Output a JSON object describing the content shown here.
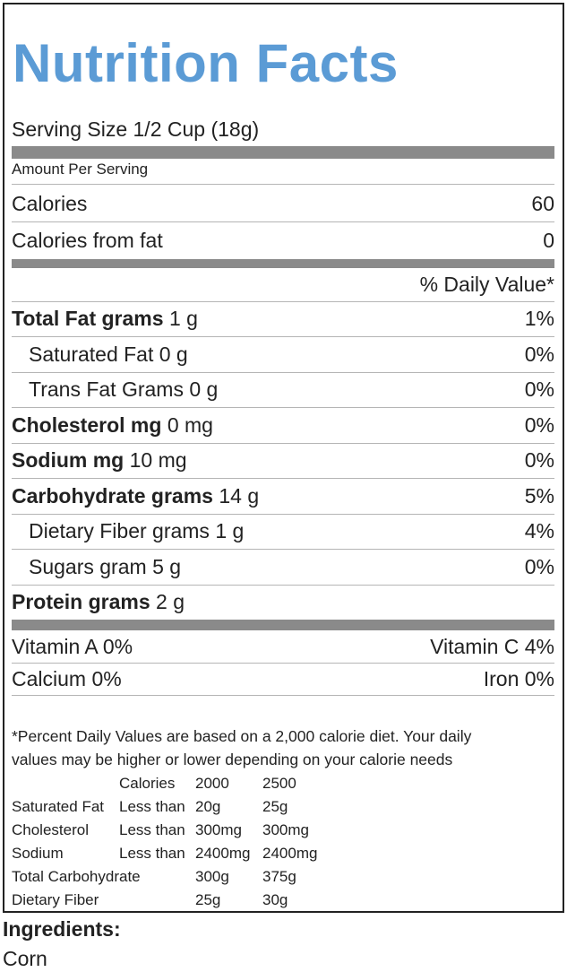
{
  "title": "Nutrition Facts",
  "serving_size": "Serving Size 1/2 Cup (18g)",
  "amount_per_serving": "Amount Per Serving",
  "calories": {
    "label": "Calories",
    "value": "60"
  },
  "calories_from_fat": {
    "label": "Calories from fat",
    "value": "0"
  },
  "daily_value_header": "% Daily Value*",
  "nutrients": [
    {
      "name": "Total Fat grams",
      "amount": "1 g",
      "dv": "1%",
      "bold": true
    },
    {
      "name": "Saturated Fat",
      "amount": "0 g",
      "dv": "0%",
      "bold": false
    },
    {
      "name": "Trans Fat Grams",
      "amount": "0 g",
      "dv": "0%",
      "bold": false
    },
    {
      "name": "Cholesterol mg",
      "amount": "0 mg",
      "dv": "0%",
      "bold": true
    },
    {
      "name": "Sodium mg",
      "amount": "10 mg",
      "dv": "0%",
      "bold": true
    },
    {
      "name": "Carbohydrate grams",
      "amount": "14 g",
      "dv": "5%",
      "bold": true
    },
    {
      "name": "Dietary Fiber grams",
      "amount": "1 g",
      "dv": "4%",
      "bold": false
    },
    {
      "name": "Sugars gram",
      "amount": "5 g",
      "dv": "0%",
      "bold": false
    },
    {
      "name": "Protein grams",
      "amount": "2 g",
      "bold": true
    }
  ],
  "vitamins": [
    [
      "Vitamin A 0%",
      "Vitamin C 4%"
    ],
    [
      "Calcium 0%",
      "Iron 0%"
    ]
  ],
  "footnote_lines": [
    "*Percent Daily Values are based on a 2,000 calorie diet. Your daily",
    "values may be higher or lower depending on your calorie needs"
  ],
  "reference_table": {
    "header": {
      "label": "Calories",
      "values": [
        "2000",
        "2500"
      ]
    },
    "rows": [
      {
        "name": "Saturated Fat",
        "limit": "Less than",
        "values": [
          "20g",
          "25g"
        ]
      },
      {
        "name": "Cholesterol",
        "limit": "Less than",
        "values": [
          "300mg",
          "300mg"
        ]
      },
      {
        "name": "Sodium",
        "limit": "Less than",
        "values": [
          "2400mg",
          "2400mg"
        ]
      },
      {
        "name": "Total Carbohydrate",
        "values": [
          "300g",
          "375g"
        ]
      },
      {
        "name": "Dietary Fiber",
        "values": [
          "25g",
          "30g"
        ]
      }
    ]
  },
  "ingredients": {
    "label": "Ingredients:",
    "text": "Corn"
  }
}
